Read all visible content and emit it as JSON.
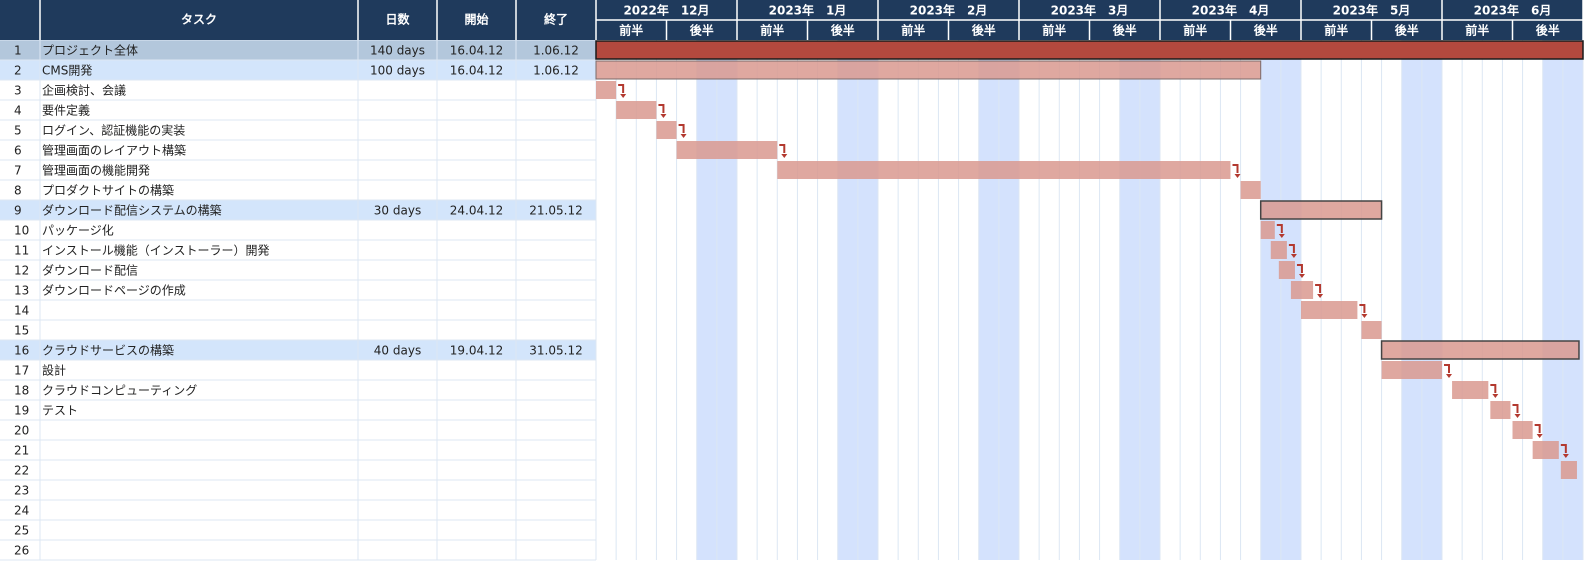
{
  "chart_data": {
    "type": "gantt",
    "columns": {
      "task": "タスク",
      "days": "日数",
      "start": "開始",
      "end": "終了"
    },
    "months": [
      "2022年　12月",
      "2023年　1月",
      "2023年　2月",
      "2023年　3月",
      "2023年　4月",
      "2023年　5月",
      "2023年　6月"
    ],
    "halves": [
      "前半",
      "後半"
    ],
    "rows": [
      {
        "n": "1",
        "task": "プロジェクト全体",
        "days": "140 days",
        "start": "16.04.12",
        "end": "1.06.12",
        "style": "total"
      },
      {
        "n": "2",
        "task": "CMS開発",
        "days": "100 days",
        "start": "16.04.12",
        "end": "1.06.12",
        "style": "group"
      },
      {
        "n": "3",
        "task": "企画検討、会議",
        "days": "",
        "start": "",
        "end": ""
      },
      {
        "n": "4",
        "task": "要件定義",
        "days": "",
        "start": "",
        "end": ""
      },
      {
        "n": "5",
        "task": "ログイン、認証機能の実装",
        "days": "",
        "start": "",
        "end": ""
      },
      {
        "n": "6",
        "task": "管理画面のレイアウト構築",
        "days": "",
        "start": "",
        "end": ""
      },
      {
        "n": "7",
        "task": "管理画面の機能開発",
        "days": "",
        "start": "",
        "end": ""
      },
      {
        "n": "8",
        "task": "プロダクトサイトの構築",
        "days": "",
        "start": "",
        "end": ""
      },
      {
        "n": "9",
        "task": "ダウンロード配信システムの構築",
        "days": "30 days",
        "start": "24.04.12",
        "end": "21.05.12",
        "style": "group"
      },
      {
        "n": "10",
        "task": "パッケージ化",
        "days": "",
        "start": "",
        "end": ""
      },
      {
        "n": "11",
        "task": "インストール機能（インストーラー）開発",
        "days": "",
        "start": "",
        "end": ""
      },
      {
        "n": "12",
        "task": "ダウンロード配信",
        "days": "",
        "start": "",
        "end": ""
      },
      {
        "n": "13",
        "task": "ダウンロードページの作成",
        "days": "",
        "start": "",
        "end": ""
      },
      {
        "n": "14",
        "task": "",
        "days": "",
        "start": "",
        "end": ""
      },
      {
        "n": "15",
        "task": "",
        "days": "",
        "start": "",
        "end": ""
      },
      {
        "n": "16",
        "task": "クラウドサービスの構築",
        "days": "40 days",
        "start": "19.04.12",
        "end": "31.05.12",
        "style": "group"
      },
      {
        "n": "17",
        "task": "設計",
        "days": "",
        "start": "",
        "end": ""
      },
      {
        "n": "18",
        "task": "クラウドコンピューティング",
        "days": "",
        "start": "",
        "end": ""
      },
      {
        "n": "19",
        "task": "テスト",
        "days": "",
        "start": "",
        "end": ""
      },
      {
        "n": "20",
        "task": "",
        "days": "",
        "start": "",
        "end": ""
      },
      {
        "n": "21",
        "task": "",
        "days": "",
        "start": "",
        "end": ""
      },
      {
        "n": "22",
        "task": "",
        "days": "",
        "start": "",
        "end": ""
      },
      {
        "n": "23",
        "task": "",
        "days": "",
        "start": "",
        "end": ""
      },
      {
        "n": "24",
        "task": "",
        "days": "",
        "start": "",
        "end": ""
      },
      {
        "n": "25",
        "task": "",
        "days": "",
        "start": "",
        "end": ""
      },
      {
        "n": "26",
        "task": "",
        "days": "",
        "start": "",
        "end": ""
      }
    ],
    "timeline_unit": "week",
    "timeline_weeks": 49,
    "highlight_weeks": [
      5,
      12,
      19,
      26,
      33,
      40,
      47
    ],
    "bars": [
      {
        "row": 0,
        "start": 0,
        "dur": 49,
        "kind": "total"
      },
      {
        "row": 1,
        "start": 0,
        "dur": 33,
        "kind": "summary"
      },
      {
        "row": 2,
        "start": 0,
        "dur": 1,
        "kind": "task",
        "link": true
      },
      {
        "row": 3,
        "start": 1,
        "dur": 2,
        "kind": "task",
        "link": true
      },
      {
        "row": 4,
        "start": 3,
        "dur": 1,
        "kind": "task",
        "link": true
      },
      {
        "row": 5,
        "start": 4,
        "dur": 5,
        "kind": "task",
        "link": true
      },
      {
        "row": 6,
        "start": 9,
        "dur": 22.5,
        "kind": "task",
        "link": true
      },
      {
        "row": 7,
        "start": 32,
        "dur": 1,
        "kind": "task"
      },
      {
        "row": 8,
        "start": 33,
        "dur": 6,
        "kind": "outline"
      },
      {
        "row": 9,
        "start": 33,
        "dur": 0.7,
        "kind": "task",
        "link": true
      },
      {
        "row": 10,
        "start": 33.5,
        "dur": 0.8,
        "kind": "task",
        "link": true
      },
      {
        "row": 11,
        "start": 33.9,
        "dur": 0.8,
        "kind": "task",
        "link": true
      },
      {
        "row": 12,
        "start": 34.5,
        "dur": 1.1,
        "kind": "task",
        "link": true
      },
      {
        "row": 13,
        "start": 35,
        "dur": 2.8,
        "kind": "task",
        "link": true
      },
      {
        "row": 14,
        "start": 38,
        "dur": 1,
        "kind": "task"
      },
      {
        "row": 15,
        "start": 39,
        "dur": 9.8,
        "kind": "outline"
      },
      {
        "row": 16,
        "start": 39,
        "dur": 3,
        "kind": "task",
        "link": true
      },
      {
        "row": 17,
        "start": 42.5,
        "dur": 1.8,
        "kind": "task",
        "link": true
      },
      {
        "row": 18,
        "start": 44.4,
        "dur": 1,
        "kind": "task",
        "link": true
      },
      {
        "row": 19,
        "start": 45.5,
        "dur": 1,
        "kind": "task",
        "link": true
      },
      {
        "row": 20,
        "start": 46.5,
        "dur": 1.3,
        "kind": "task",
        "link": true
      },
      {
        "row": 21,
        "start": 47.9,
        "dur": 0.8,
        "kind": "task"
      }
    ],
    "colors": {
      "header": "#1f3a5c",
      "total_row": "#b3c7dc",
      "group_row": "#d3e5fb",
      "highlight": "#d4e2fd",
      "grid": "#dce7f3",
      "bar_total": "#b3493e",
      "bar_task": "#d9998f",
      "bar_outline_stroke": "#444444",
      "link_arrow": "#b3392f"
    }
  }
}
